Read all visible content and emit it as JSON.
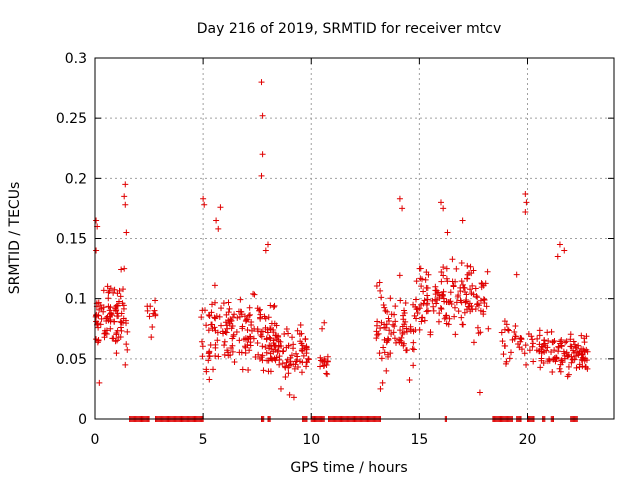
{
  "chart_data": {
    "type": "scatter",
    "title": "Day 216 of 2019, SRMTID for receiver mtcv",
    "xlabel": "GPS time / hours",
    "ylabel": "SRMTID / TECUs",
    "xlim": [
      0,
      24
    ],
    "ylim": [
      0,
      0.3
    ],
    "xticks": [
      0,
      5,
      10,
      15,
      20
    ],
    "yticks": [
      0,
      0.05,
      0.1,
      0.15,
      0.2,
      0.25,
      0.3
    ],
    "xtick_labels": [
      "0",
      "5",
      "10",
      "15",
      "20"
    ],
    "ytick_labels": [
      "0",
      "0.05",
      "0.1",
      "0.15",
      "0.2",
      "0.25",
      "0.3"
    ],
    "grid": true,
    "marker": "plus",
    "series_color": "#e00000",
    "clusters": [
      {
        "x_range": [
          0.0,
          1.5
        ],
        "center": 0.085,
        "spread": 0.025,
        "count": 95,
        "outliers": [
          [
            0.05,
            0.165
          ],
          [
            0.1,
            0.16
          ],
          [
            0.05,
            0.14
          ],
          [
            0.2,
            0.03
          ],
          [
            1.4,
            0.195
          ],
          [
            1.35,
            0.185
          ],
          [
            1.4,
            0.178
          ],
          [
            1.45,
            0.155
          ],
          [
            1.35,
            0.125
          ],
          [
            1.4,
            0.045
          ]
        ]
      },
      {
        "x_range": [
          2.4,
          2.8
        ],
        "center": 0.09,
        "spread": 0.012,
        "count": 10,
        "outliers": [
          [
            2.6,
            0.068
          ]
        ]
      },
      {
        "x_range": [
          4.9,
          8.5
        ],
        "center": 0.075,
        "spread": 0.03,
        "count": 170,
        "outliers": [
          [
            7.7,
            0.28
          ],
          [
            7.75,
            0.252
          ],
          [
            7.75,
            0.22
          ],
          [
            7.7,
            0.202
          ],
          [
            5.0,
            0.183
          ],
          [
            5.05,
            0.178
          ],
          [
            5.8,
            0.176
          ],
          [
            5.6,
            0.165
          ],
          [
            5.7,
            0.158
          ],
          [
            8.0,
            0.145
          ],
          [
            7.9,
            0.14
          ]
        ]
      },
      {
        "x_range": [
          7.7,
          9.9
        ],
        "center": 0.055,
        "spread": 0.018,
        "count": 90,
        "outliers": [
          [
            9.2,
            0.018
          ],
          [
            9.0,
            0.02
          ],
          [
            8.6,
            0.025
          ]
        ]
      },
      {
        "x_range": [
          10.4,
          10.8
        ],
        "center": 0.045,
        "spread": 0.01,
        "count": 16,
        "outliers": [
          [
            10.6,
            0.08
          ],
          [
            10.5,
            0.075
          ]
        ]
      },
      {
        "x_range": [
          13.0,
          15.0
        ],
        "center": 0.075,
        "spread": 0.03,
        "count": 90,
        "outliers": [
          [
            14.1,
            0.183
          ],
          [
            14.2,
            0.175
          ],
          [
            13.2,
            0.025
          ],
          [
            13.3,
            0.03
          ]
        ]
      },
      {
        "x_range": [
          15.0,
          18.2
        ],
        "center": 0.1,
        "spread": 0.028,
        "count": 150,
        "outliers": [
          [
            16.0,
            0.18
          ],
          [
            16.1,
            0.175
          ],
          [
            17.0,
            0.165
          ],
          [
            16.3,
            0.155
          ],
          [
            17.8,
            0.022
          ]
        ]
      },
      {
        "x_range": [
          18.8,
          20.6
        ],
        "center": 0.065,
        "spread": 0.02,
        "count": 45,
        "outliers": [
          [
            19.9,
            0.187
          ],
          [
            19.95,
            0.18
          ],
          [
            19.9,
            0.172
          ],
          [
            19.5,
            0.12
          ]
        ]
      },
      {
        "x_range": [
          20.5,
          22.8
        ],
        "center": 0.055,
        "spread": 0.015,
        "count": 110,
        "outliers": [
          [
            21.5,
            0.145
          ],
          [
            21.7,
            0.14
          ],
          [
            21.4,
            0.135
          ]
        ]
      }
    ],
    "zero_segments": [
      [
        1.6,
        2.5
      ],
      [
        2.8,
        5.0
      ],
      [
        7.7,
        7.8
      ],
      [
        8.0,
        8.1
      ],
      [
        9.6,
        9.8
      ],
      [
        10.0,
        10.6
      ],
      [
        10.8,
        13.2
      ],
      [
        16.2,
        16.25
      ],
      [
        18.4,
        19.3
      ],
      [
        19.5,
        19.7
      ],
      [
        20.0,
        20.3
      ],
      [
        20.7,
        20.8
      ],
      [
        21.1,
        21.2
      ],
      [
        22.0,
        22.3
      ]
    ]
  }
}
